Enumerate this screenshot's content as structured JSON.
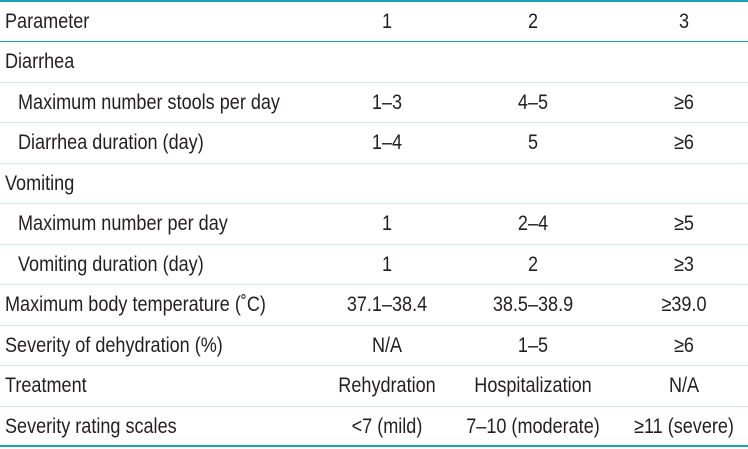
{
  "table": {
    "headers": [
      "Parameter",
      "1",
      "2",
      "3"
    ],
    "rows": [
      {
        "label": "Diarrhea",
        "v1": "",
        "v2": "",
        "v3": ""
      },
      {
        "label": "Maximum number stools per day",
        "v1": "1–3",
        "v2": "4–5",
        "v3": "≥6"
      },
      {
        "label": "Diarrhea duration (day)",
        "v1": "1–4",
        "v2": "5",
        "v3": "≥6"
      },
      {
        "label": "Vomiting",
        "v1": "",
        "v2": "",
        "v3": ""
      },
      {
        "label": "Maximum number per day",
        "v1": "1",
        "v2": "2–4",
        "v3": "≥5"
      },
      {
        "label": "Vomiting duration (day)",
        "v1": "1",
        "v2": "2",
        "v3": "≥3"
      },
      {
        "label": "Maximum body temperature (˚C)",
        "v1": "37.1–38.4",
        "v2": "38.5–38.9",
        "v3": "≥39.0"
      },
      {
        "label": "Severity of dehydration (%)",
        "v1": "N/A",
        "v2": "1–5",
        "v3": "≥6"
      },
      {
        "label": "Treatment",
        "v1": "Rehydration",
        "v2": "Hospitalization",
        "v3": "N/A"
      },
      {
        "label": "Severity rating scales",
        "v1": "<7 (mild)",
        "v2": "7–10 (moderate)",
        "v3": "≥11 (severe)"
      }
    ]
  }
}
